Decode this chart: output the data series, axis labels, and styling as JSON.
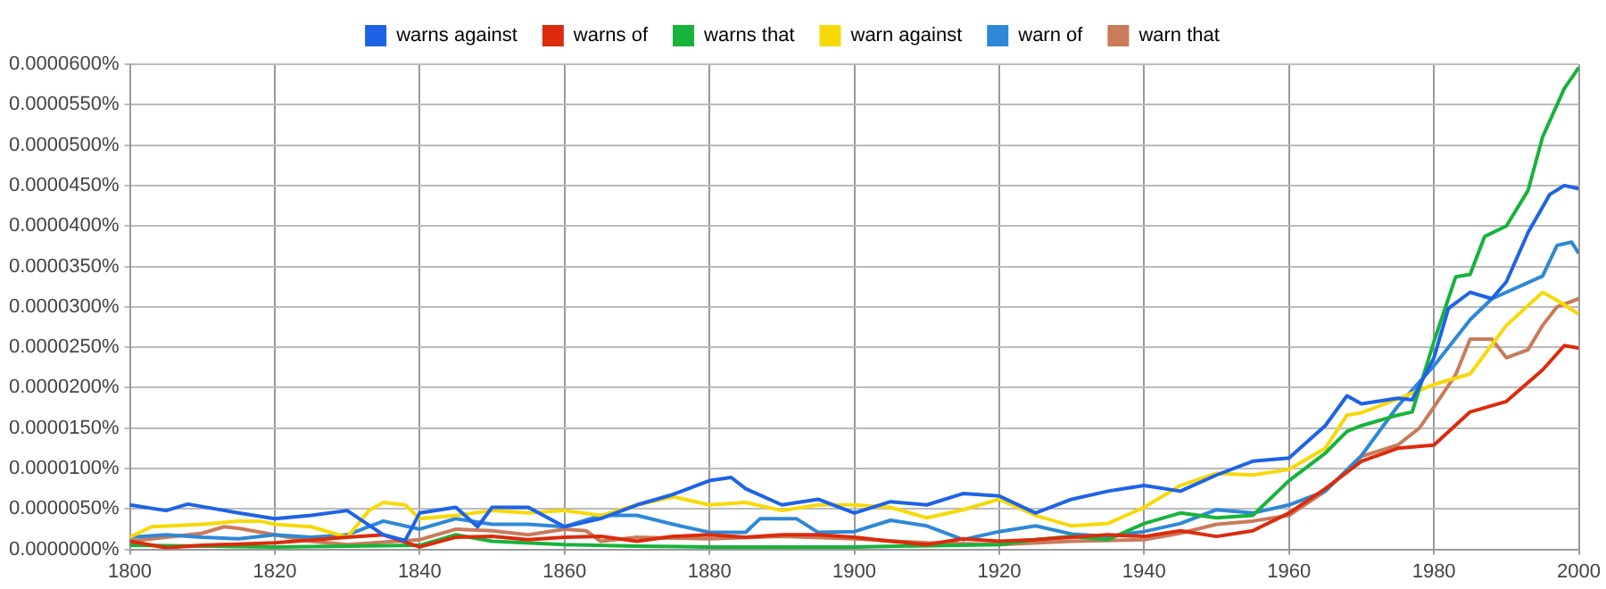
{
  "chart_data": {
    "type": "line",
    "marker": "none",
    "grid": true,
    "legend": "top",
    "xlim": [
      1800,
      2000
    ],
    "xticks": [
      1800,
      1820,
      1840,
      1860,
      1880,
      1900,
      1920,
      1940,
      1960,
      1980,
      2000
    ],
    "ylim": [
      0,
      6e-05
    ],
    "yticks": [
      {
        "value": 0,
        "label": "0.0000000%"
      },
      {
        "value": 5e-06,
        "label": "0.0000050%"
      },
      {
        "value": 1e-05,
        "label": "0.0000100%"
      },
      {
        "value": 1.5e-05,
        "label": "0.0000150%"
      },
      {
        "value": 2e-05,
        "label": "0.0000200%"
      },
      {
        "value": 2.5e-05,
        "label": "0.0000250%"
      },
      {
        "value": 3e-05,
        "label": "0.0000300%"
      },
      {
        "value": 3.5e-05,
        "label": "0.0000350%"
      },
      {
        "value": 4e-05,
        "label": "0.0000400%"
      },
      {
        "value": 4.5e-05,
        "label": "0.0000450%"
      },
      {
        "value": 5e-05,
        "label": "0.0000500%"
      },
      {
        "value": 5.5e-05,
        "label": "0.0000550%"
      },
      {
        "value": 6e-05,
        "label": "0.0000600%"
      }
    ],
    "series": [
      {
        "name": "warns against",
        "color": "#1e63e6",
        "x": [
          1800,
          1805,
          1808,
          1815,
          1820,
          1825,
          1830,
          1835,
          1838,
          1840,
          1845,
          1848,
          1850,
          1855,
          1860,
          1865,
          1870,
          1875,
          1880,
          1883,
          1885,
          1890,
          1895,
          1900,
          1905,
          1910,
          1915,
          1920,
          1925,
          1930,
          1935,
          1940,
          1945,
          1950,
          1955,
          1960,
          1965,
          1968,
          1970,
          1975,
          1977,
          1980,
          1982,
          1985,
          1988,
          1990,
          1993,
          1996,
          1998,
          2000
        ],
        "values": [
          5.5e-06,
          4.8e-06,
          5.6e-06,
          4.5e-06,
          3.8e-06,
          4.2e-06,
          4.8e-06,
          1.8e-06,
          1.1e-06,
          4.5e-06,
          5.2e-06,
          2.8e-06,
          5.2e-06,
          5.2e-06,
          2.8e-06,
          3.8e-06,
          5.5e-06,
          6.8e-06,
          8.5e-06,
          8.9e-06,
          7.5e-06,
          5.5e-06,
          6.2e-06,
          4.5e-06,
          5.9e-06,
          5.5e-06,
          6.9e-06,
          6.6e-06,
          4.5e-06,
          6.2e-06,
          7.2e-06,
          7.9e-06,
          7.2e-06,
          9.2e-06,
          1.09e-05,
          1.13e-05,
          1.53e-05,
          1.9e-05,
          1.8e-05,
          1.87e-05,
          1.85e-05,
          2.37e-05,
          2.98e-05,
          3.18e-05,
          3.1e-05,
          3.31e-05,
          3.92e-05,
          4.39e-05,
          4.5e-05,
          4.46e-05
        ]
      },
      {
        "name": "warns of",
        "color": "#dc2b0c",
        "x": [
          1800,
          1805,
          1810,
          1820,
          1830,
          1835,
          1840,
          1845,
          1850,
          1855,
          1860,
          1865,
          1870,
          1875,
          1880,
          1885,
          1890,
          1895,
          1900,
          1905,
          1910,
          1915,
          1920,
          1925,
          1930,
          1935,
          1940,
          1945,
          1950,
          1955,
          1960,
          1965,
          1970,
          1975,
          1980,
          1985,
          1990,
          1995,
          1998,
          2000
        ],
        "values": [
          1e-06,
          2e-07,
          5e-07,
          8e-07,
          1.5e-06,
          1.8e-06,
          3e-07,
          1.5e-06,
          1.6e-06,
          1.2e-06,
          1.5e-06,
          1.6e-06,
          1e-06,
          1.6e-06,
          1.8e-06,
          1.5e-06,
          1.8e-06,
          1.8e-06,
          1.5e-06,
          1e-06,
          6e-07,
          1.3e-06,
          1e-06,
          1.2e-06,
          1.5e-06,
          1.8e-06,
          1.6e-06,
          2.3e-06,
          1.6e-06,
          2.3e-06,
          4.5e-06,
          7.5e-06,
          1.09e-05,
          1.25e-05,
          1.29e-05,
          1.7e-05,
          1.83e-05,
          2.22e-05,
          2.52e-05,
          2.49e-05
        ]
      },
      {
        "name": "warns that",
        "color": "#17b33b",
        "x": [
          1800,
          1820,
          1840,
          1845,
          1850,
          1860,
          1870,
          1880,
          1900,
          1920,
          1925,
          1930,
          1935,
          1940,
          1945,
          1950,
          1955,
          1960,
          1965,
          1968,
          1970,
          1975,
          1977,
          1980,
          1983,
          1985,
          1987,
          1990,
          1993,
          1995,
          1998,
          2000
        ],
        "values": [
          5e-07,
          3e-07,
          5e-07,
          1.8e-06,
          1e-06,
          6e-07,
          4e-07,
          3e-07,
          3e-07,
          6e-07,
          1.2e-06,
          1.6e-06,
          1.2e-06,
          3.2e-06,
          4.5e-06,
          3.9e-06,
          4.2e-06,
          8.5e-06,
          1.19e-05,
          1.46e-05,
          1.53e-05,
          1.66e-05,
          1.7e-05,
          2.57e-05,
          3.37e-05,
          3.4e-05,
          3.87e-05,
          4e-05,
          4.44e-05,
          5.1e-05,
          5.7e-05,
          5.96e-05
        ]
      },
      {
        "name": "warn against",
        "color": "#f7d90a",
        "x": [
          1800,
          1803,
          1810,
          1815,
          1818,
          1820,
          1825,
          1830,
          1833,
          1835,
          1838,
          1840,
          1845,
          1850,
          1855,
          1860,
          1865,
          1870,
          1875,
          1880,
          1885,
          1890,
          1895,
          1900,
          1905,
          1910,
          1915,
          1920,
          1925,
          1930,
          1935,
          1940,
          1945,
          1950,
          1955,
          1960,
          1965,
          1968,
          1970,
          1975,
          1980,
          1985,
          1990,
          1995,
          1997,
          2000
        ],
        "values": [
          1.5e-06,
          2.8e-06,
          3.1e-06,
          3.5e-06,
          3.5e-06,
          3.1e-06,
          2.8e-06,
          1.5e-06,
          4.8e-06,
          5.8e-06,
          5.5e-06,
          3.8e-06,
          4.2e-06,
          4.8e-06,
          4.5e-06,
          4.8e-06,
          4.2e-06,
          5.5e-06,
          6.5e-06,
          5.5e-06,
          5.8e-06,
          4.8e-06,
          5.5e-06,
          5.5e-06,
          5.2e-06,
          3.9e-06,
          4.9e-06,
          6.2e-06,
          4.2e-06,
          2.9e-06,
          3.2e-06,
          5.2e-06,
          7.9e-06,
          9.4e-06,
          9.2e-06,
          9.9e-06,
          1.25e-05,
          1.66e-05,
          1.69e-05,
          1.86e-05,
          2.04e-05,
          2.17e-05,
          2.77e-05,
          3.18e-05,
          3.08e-05,
          2.91e-05
        ]
      },
      {
        "name": "warn of",
        "color": "#2e88d6",
        "x": [
          1800,
          1805,
          1810,
          1815,
          1820,
          1825,
          1830,
          1835,
          1840,
          1845,
          1850,
          1855,
          1860,
          1865,
          1870,
          1875,
          1880,
          1885,
          1887,
          1892,
          1895,
          1900,
          1905,
          1910,
          1915,
          1920,
          1925,
          1930,
          1935,
          1940,
          1945,
          1950,
          1955,
          1960,
          1965,
          1970,
          1975,
          1980,
          1985,
          1988,
          1990,
          1995,
          1997,
          1999,
          2000
        ],
        "values": [
          1.5e-06,
          1.8e-06,
          1.5e-06,
          1.3e-06,
          1.8e-06,
          1.5e-06,
          1.8e-06,
          3.5e-06,
          2.5e-06,
          3.8e-06,
          3.1e-06,
          3.1e-06,
          2.8e-06,
          4.2e-06,
          4.2e-06,
          3.1e-06,
          2.1e-06,
          2.1e-06,
          3.8e-06,
          3.8e-06,
          2.1e-06,
          2.2e-06,
          3.6e-06,
          2.9e-06,
          1.2e-06,
          2.2e-06,
          2.9e-06,
          1.9e-06,
          1.6e-06,
          2.2e-06,
          3.2e-06,
          4.9e-06,
          4.5e-06,
          5.5e-06,
          7.2e-06,
          1.16e-05,
          1.77e-05,
          2.27e-05,
          2.84e-05,
          3.1e-05,
          3.18e-05,
          3.38e-05,
          3.76e-05,
          3.8e-05,
          3.66e-05
        ]
      },
      {
        "name": "warn that",
        "color": "#c97b5a",
        "x": [
          1800,
          1805,
          1810,
          1813,
          1815,
          1820,
          1825,
          1830,
          1840,
          1845,
          1850,
          1855,
          1860,
          1863,
          1865,
          1870,
          1880,
          1890,
          1900,
          1910,
          1920,
          1930,
          1940,
          1945,
          1950,
          1955,
          1960,
          1965,
          1970,
          1975,
          1978,
          1980,
          1983,
          1985,
          1988,
          1990,
          1993,
          1995,
          1997,
          2000
        ],
        "values": [
          1e-06,
          1.5e-06,
          2e-06,
          2.8e-06,
          2.6e-06,
          1.8e-06,
          1e-06,
          6e-07,
          1.2e-06,
          2.5e-06,
          2.3e-06,
          1.8e-06,
          2.5e-06,
          2.3e-06,
          1e-06,
          1.5e-06,
          1.3e-06,
          1.6e-06,
          1.3e-06,
          8e-07,
          6e-07,
          1e-06,
          1.2e-06,
          2e-06,
          3.1e-06,
          3.5e-06,
          4.2e-06,
          7.2e-06,
          1.15e-05,
          1.29e-05,
          1.5e-05,
          1.76e-05,
          2.16e-05,
          2.6e-05,
          2.6e-05,
          2.37e-05,
          2.47e-05,
          2.77e-05,
          3e-05,
          3.1e-05
        ]
      }
    ]
  }
}
